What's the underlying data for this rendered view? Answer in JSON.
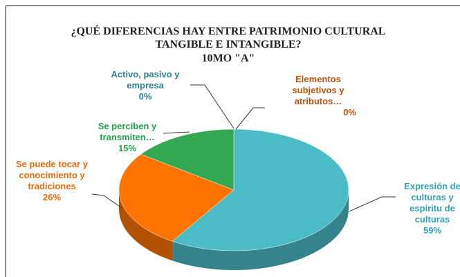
{
  "chart_data": {
    "type": "pie3d",
    "title": "¿QUÉ DIFERENCIAS HAY ENTRE PATRIMONIO CULTURAL TANGIBLE E INTANGIBLE?",
    "subtitle": "10MO \"A\"",
    "categories": [
      "Expresión de culturas y espiritu de culturas",
      "Se puede tocar y conocimiento y tradiciones",
      "Se perciben y transmiten…",
      "Activo, pasivo y empresa",
      "Elementos subjetivos y atributos…"
    ],
    "values": [
      59,
      26,
      15,
      0,
      0
    ],
    "value_labels": [
      "59%",
      "26%",
      "15%",
      "0%",
      "0%"
    ],
    "colors": [
      "#4bbcc6",
      "#ff7300",
      "#35a853",
      "#4472c4",
      "#a5a5a5"
    ]
  }
}
